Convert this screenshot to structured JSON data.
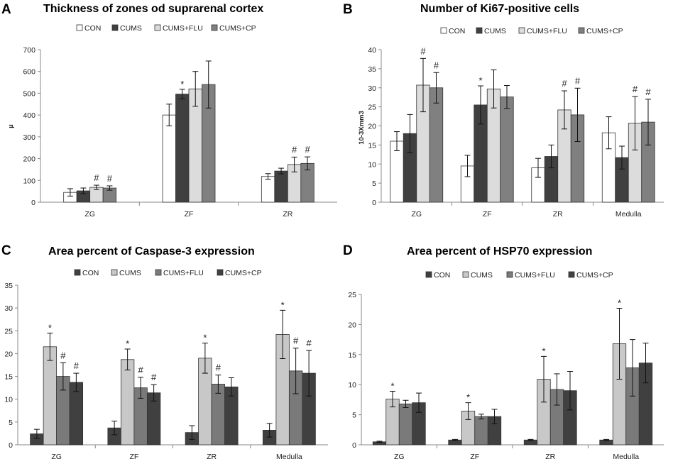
{
  "colors": {
    "CON_A": "#ffffff",
    "CUMS_A": "#404040",
    "FLU_A": "#dcdcdc",
    "CP_A": "#808080",
    "CON_C": "#404040",
    "CUMS_C": "#c8c8c8",
    "FLU_C": "#7a7a7a",
    "CP_C": "#404040",
    "axis": "#888888",
    "err": "#111111"
  },
  "chart_data": [
    {
      "panel": "A",
      "type": "bar",
      "title": "Thickness of zones od suprarenal  cortex",
      "ylabel": "µ",
      "xlabel": "",
      "ylim": [
        0,
        700
      ],
      "yticks": [
        "0",
        "100",
        "200",
        "300",
        "400",
        "500",
        "600",
        "700"
      ],
      "categories": [
        "ZG",
        "ZF",
        "ZR"
      ],
      "legend_position": "top",
      "series": [
        {
          "name": "CON",
          "color_key": "CON_A",
          "values": [
            45,
            400,
            118
          ],
          "errors": [
            17,
            50,
            13
          ],
          "marks": [
            "",
            "",
            ""
          ]
        },
        {
          "name": "CUMS",
          "color_key": "CUMS_A",
          "values": [
            52,
            496,
            143
          ],
          "errors": [
            13,
            22,
            13
          ],
          "marks": [
            "",
            "*",
            ""
          ]
        },
        {
          "name": "CUMS+FLU",
          "color_key": "FLU_A",
          "values": [
            68,
            520,
            173
          ],
          "errors": [
            10,
            80,
            34
          ],
          "marks": [
            "#",
            "",
            "#"
          ]
        },
        {
          "name": "CUMS+CP",
          "color_key": "CP_A",
          "values": [
            65,
            540,
            178
          ],
          "errors": [
            10,
            108,
            30
          ],
          "marks": [
            "#",
            "",
            "#"
          ]
        }
      ]
    },
    {
      "panel": "B",
      "type": "bar",
      "title": "Number of Ki67-positive  cells",
      "ylabel": "10-3Xmm3",
      "xlabel": "",
      "ylim": [
        0,
        40
      ],
      "yticks": [
        "0",
        "5",
        "10",
        "15",
        "20",
        "25",
        "30",
        "35",
        "40"
      ],
      "categories": [
        "ZG",
        "ZF",
        "ZR",
        "Medulla"
      ],
      "legend_position": "top",
      "series": [
        {
          "name": "CON",
          "color_key": "CON_A",
          "values": [
            16,
            9.5,
            9,
            18.2
          ],
          "errors": [
            2.5,
            2.8,
            2.5,
            4.2
          ],
          "marks": [
            "",
            "",
            "",
            ""
          ]
        },
        {
          "name": "CUMS",
          "color_key": "CUMS_A",
          "values": [
            18,
            25.5,
            12,
            11.7
          ],
          "errors": [
            5,
            5,
            3,
            3
          ],
          "marks": [
            "",
            "*",
            "",
            ""
          ]
        },
        {
          "name": "CUMS+FLU",
          "color_key": "FLU_A",
          "values": [
            30.7,
            29.7,
            24.2,
            20.7
          ],
          "errors": [
            7,
            5,
            5,
            7
          ],
          "marks": [
            "#",
            "",
            "#",
            "#"
          ]
        },
        {
          "name": "CUMS+CP",
          "color_key": "CP_A",
          "values": [
            30,
            27.6,
            22.9,
            21
          ],
          "errors": [
            4,
            3,
            7,
            6
          ],
          "marks": [
            "#",
            "",
            "#",
            "#"
          ]
        }
      ]
    },
    {
      "panel": "C",
      "type": "bar",
      "title": "Area percent of Caspase-3  expression",
      "ylabel": "",
      "xlabel": "",
      "ylim": [
        0,
        35
      ],
      "yticks": [
        "0",
        "5",
        "10",
        "15",
        "20",
        "25",
        "30",
        "35"
      ],
      "categories": [
        "ZG",
        "ZF",
        "ZR",
        "Medulla"
      ],
      "legend_position": "top",
      "series": [
        {
          "name": "CON",
          "color_key": "CON_C",
          "values": [
            2.4,
            3.7,
            2.7,
            3.2
          ],
          "errors": [
            1,
            1.5,
            1.5,
            1.5
          ],
          "marks": [
            "",
            "",
            "",
            ""
          ]
        },
        {
          "name": "CUMS",
          "color_key": "CUMS_C",
          "values": [
            21.5,
            18.7,
            19,
            24.2
          ],
          "errors": [
            3,
            2.3,
            3.3,
            5.3
          ],
          "marks": [
            "*",
            "*",
            "*",
            "*"
          ]
        },
        {
          "name": "CUMS+FLU",
          "color_key": "FLU_C",
          "values": [
            15,
            12.5,
            13.3,
            16.2
          ],
          "errors": [
            3,
            2.3,
            2,
            5
          ],
          "marks": [
            "#",
            "#",
            "#",
            "#"
          ]
        },
        {
          "name": "CUMS+CP",
          "color_key": "CP_C",
          "values": [
            13.7,
            11.4,
            12.7,
            15.7
          ],
          "errors": [
            2,
            1.8,
            2,
            5
          ],
          "marks": [
            "#",
            "#",
            "",
            "#"
          ]
        }
      ]
    },
    {
      "panel": "D",
      "type": "bar",
      "title": "Area percent of HSP70  expression",
      "ylabel": "",
      "xlabel": "",
      "ylim": [
        0,
        25
      ],
      "yticks": [
        "0",
        "5",
        "10",
        "15",
        "20",
        "25"
      ],
      "categories": [
        "ZG",
        "ZF",
        "ZR",
        "Medulla"
      ],
      "legend_position": "top",
      "series": [
        {
          "name": "CON",
          "color_key": "CON_C",
          "values": [
            0.5,
            0.8,
            0.8,
            0.8
          ],
          "errors": [
            0.1,
            0.1,
            0.1,
            0.1
          ],
          "marks": [
            "",
            "",
            "",
            ""
          ]
        },
        {
          "name": "CUMS",
          "color_key": "CUMS_C",
          "values": [
            7.6,
            5.6,
            10.9,
            16.8
          ],
          "errors": [
            1.3,
            1.4,
            3.8,
            5.9
          ],
          "marks": [
            "*",
            "*",
            "*",
            "*"
          ]
        },
        {
          "name": "CUMS+FLU",
          "color_key": "FLU_C",
          "values": [
            6.8,
            4.7,
            9.2,
            12.8
          ],
          "errors": [
            0.6,
            0.4,
            2.6,
            4.7
          ],
          "marks": [
            "",
            "",
            "",
            ""
          ]
        },
        {
          "name": "CUMS+CP",
          "color_key": "CP_C",
          "values": [
            7,
            4.7,
            9,
            13.6
          ],
          "errors": [
            1.6,
            1.2,
            3.2,
            3.3
          ],
          "marks": [
            "",
            "",
            "",
            ""
          ]
        }
      ]
    }
  ]
}
